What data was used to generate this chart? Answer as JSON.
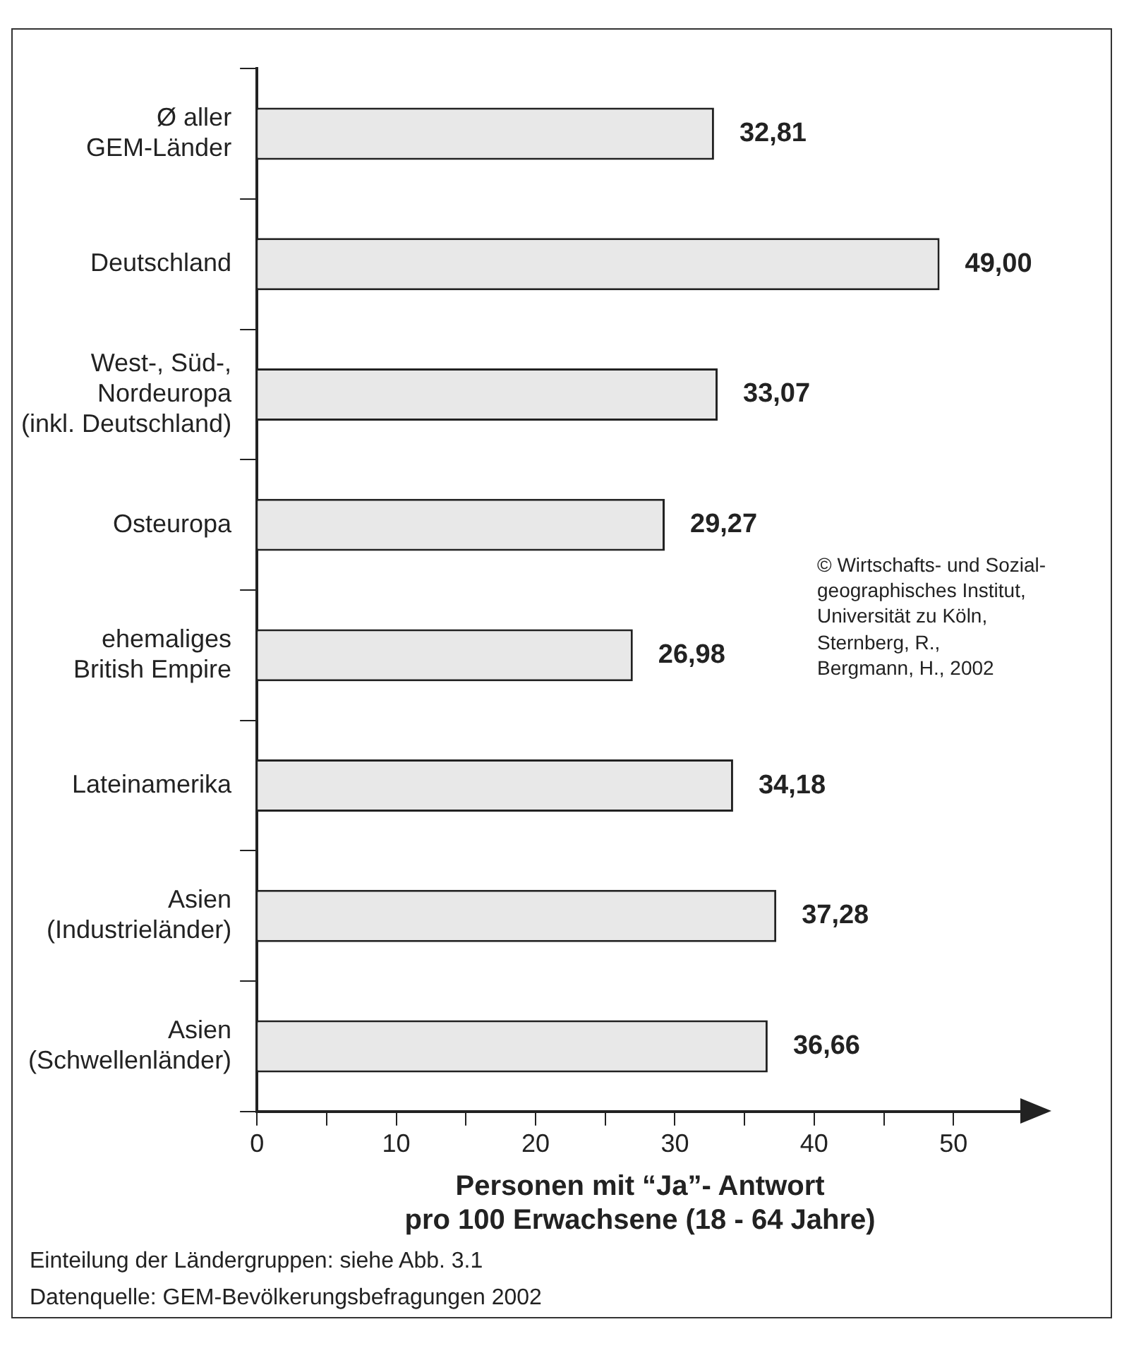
{
  "chart_data": {
    "type": "bar",
    "orientation": "horizontal",
    "categories": [
      "Ø aller\nGEM-Länder",
      "Deutschland",
      "West-, Süd-,\nNordeuropa\n(inkl. Deutschland)",
      "Osteuropa",
      "ehemaliges\nBritish Empire",
      "Lateinamerika",
      "Asien\n(Industrieländer)",
      "Asien\n(Schwellenländer)"
    ],
    "values": [
      32.81,
      49.0,
      33.07,
      29.27,
      26.98,
      34.18,
      37.28,
      36.66
    ],
    "value_labels": [
      "32,81",
      "49,00",
      "33,07",
      "29,27",
      "26,98",
      "34,18",
      "37,28",
      "36,66"
    ],
    "color": "#e8e8e8",
    "xlim": [
      0,
      55
    ],
    "xticks": [
      0,
      {
        "value": 5,
        "label": null
      },
      10,
      {
        "value": 15,
        "label": null
      },
      20,
      {
        "value": 25,
        "label": null
      },
      30,
      {
        "value": 35,
        "label": null
      },
      40,
      {
        "value": 45,
        "label": null
      },
      50
    ],
    "xlabel": "Personen mit “Ja”- Antwort\npro 100 Erwachsene (18 - 64 Jahre)",
    "grid": false,
    "legend": false,
    "annotations": [
      "© Wirtschafts- und Sozial-\ngeographisches Institut,\nUniversität zu Köln,\nSternberg, R.,\nBergmann, H., 2002",
      "Einteilung der Ländergruppen: siehe Abb. 3.1",
      "Datenquelle: GEM-Bevölkerungsbefragungen 2002"
    ]
  }
}
